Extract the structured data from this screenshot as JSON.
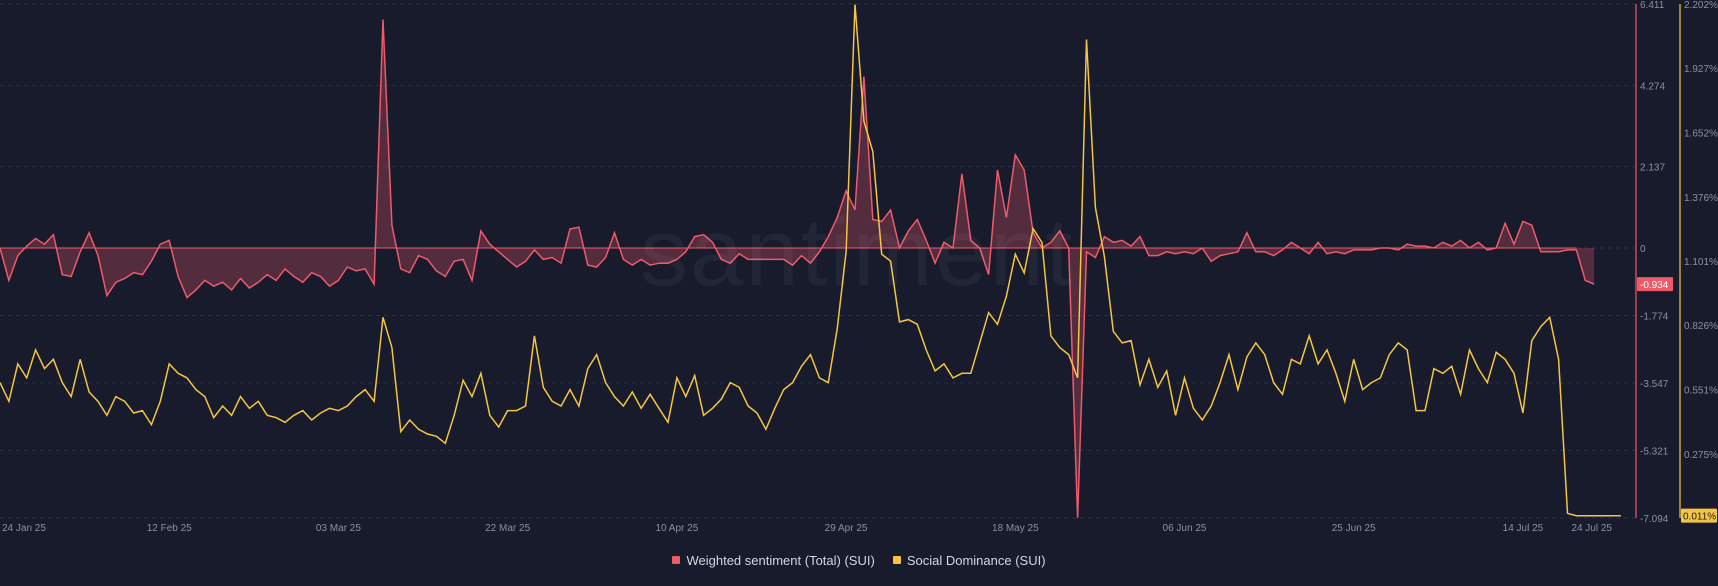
{
  "watermark": "santiment",
  "legend": [
    {
      "label": "Weighted sentiment (Total) (SUI)",
      "color": "#ef5a6a"
    },
    {
      "label": "Social Dominance (SUI)",
      "color": "#f5c542"
    }
  ],
  "chart_data": {
    "type": "line",
    "title": "",
    "x_ticks": [
      "24 Jan 25",
      "12 Feb 25",
      "03 Mar 25",
      "22 Mar 25",
      "10 Apr 25",
      "29 Apr 25",
      "18 May 25",
      "06 Jun 25",
      "25 Jun 25",
      "14 Jul 25",
      "24 Jul 25"
    ],
    "x_tick_days": [
      0,
      19,
      38,
      57,
      76,
      95,
      114,
      133,
      152,
      171,
      181
    ],
    "sentiment_axis": {
      "ticks": [
        "6.411",
        "4.274",
        "2.137",
        "0",
        "-1.774",
        "-3.547",
        "-5.321",
        "-7.094"
      ],
      "ylim": [
        -7.094,
        6.411
      ],
      "last_value_label": "-0.934"
    },
    "dominance_axis": {
      "ticks": [
        "2.202%",
        "1.927%",
        "1.652%",
        "1.376%",
        "1.101%",
        "0.826%",
        "0.551%",
        "0.275%"
      ],
      "ylim": [
        0.0,
        2.202
      ],
      "last_value_label": "0.011%"
    },
    "grid": true,
    "legend_position": "bottom-center",
    "series": [
      {
        "name": "Weighted sentiment (Total) (SUI)",
        "color": "#ef5a6a",
        "start_date": "24 Jan 25",
        "values": [
          0.0,
          -0.85,
          -0.2,
          0.05,
          0.25,
          0.1,
          0.35,
          -0.7,
          -0.75,
          -0.1,
          0.4,
          -0.2,
          -1.25,
          -0.9,
          -0.8,
          -0.65,
          -0.7,
          -0.35,
          0.1,
          0.2,
          -0.75,
          -1.3,
          -1.1,
          -0.85,
          -1.0,
          -0.9,
          -1.1,
          -0.8,
          -1.05,
          -0.9,
          -0.7,
          -0.85,
          -0.55,
          -0.75,
          -0.9,
          -0.65,
          -0.75,
          -1.0,
          -0.85,
          -0.5,
          -0.6,
          -0.55,
          -0.95,
          6.0,
          0.6,
          -0.55,
          -0.65,
          -0.2,
          -0.3,
          -0.6,
          -0.75,
          -0.35,
          -0.3,
          -0.85,
          0.45,
          0.1,
          -0.1,
          -0.3,
          -0.5,
          -0.35,
          -0.05,
          -0.3,
          -0.25,
          -0.4,
          0.5,
          0.55,
          -0.45,
          -0.5,
          -0.25,
          0.4,
          -0.3,
          -0.45,
          -0.3,
          -0.45,
          -0.4,
          -0.4,
          -0.3,
          -0.1,
          0.3,
          0.35,
          0.15,
          -0.3,
          -0.4,
          -0.15,
          -0.3,
          -0.3,
          -0.3,
          -0.3,
          -0.3,
          -0.45,
          -0.2,
          -0.4,
          -0.1,
          0.3,
          0.8,
          1.5,
          1.0,
          4.5,
          0.75,
          0.7,
          1.0,
          0.0,
          0.45,
          0.75,
          0.2,
          -0.4,
          0.15,
          0.0,
          1.95,
          0.2,
          0.0,
          -0.7,
          2.05,
          0.8,
          2.45,
          2.05,
          0.4,
          0.0,
          0.15,
          0.45,
          0.0,
          -7.09,
          -0.1,
          -0.25,
          0.3,
          0.15,
          0.2,
          0.05,
          0.3,
          -0.2,
          -0.2,
          -0.1,
          -0.15,
          -0.1,
          -0.15,
          0.0,
          -0.35,
          -0.2,
          -0.15,
          -0.1,
          0.4,
          -0.1,
          -0.1,
          -0.2,
          -0.05,
          0.15,
          0.0,
          -0.15,
          0.15,
          -0.15,
          -0.1,
          -0.15,
          -0.05,
          -0.05,
          -0.05,
          0.0,
          0.0,
          -0.05,
          0.1,
          0.05,
          0.05,
          0.0,
          0.15,
          0.05,
          0.2,
          0.0,
          0.15,
          -0.05,
          0.0,
          0.65,
          0.1,
          0.7,
          0.6,
          -0.1,
          -0.1,
          -0.1,
          -0.05,
          -0.05,
          -0.85,
          -0.95
        ]
      },
      {
        "name": "Social Dominance (SUI)",
        "color": "#f5c542",
        "start_date": "24 Jan 25",
        "values": [
          0.58,
          0.5,
          0.66,
          0.6,
          0.72,
          0.64,
          0.68,
          0.58,
          0.52,
          0.68,
          0.54,
          0.5,
          0.44,
          0.52,
          0.5,
          0.45,
          0.46,
          0.4,
          0.5,
          0.66,
          0.62,
          0.6,
          0.55,
          0.52,
          0.43,
          0.48,
          0.44,
          0.52,
          0.47,
          0.5,
          0.44,
          0.43,
          0.41,
          0.44,
          0.46,
          0.42,
          0.45,
          0.47,
          0.46,
          0.48,
          0.52,
          0.55,
          0.5,
          0.86,
          0.73,
          0.37,
          0.42,
          0.38,
          0.36,
          0.35,
          0.32,
          0.44,
          0.59,
          0.52,
          0.62,
          0.44,
          0.39,
          0.46,
          0.46,
          0.48,
          0.78,
          0.56,
          0.5,
          0.48,
          0.55,
          0.48,
          0.64,
          0.7,
          0.58,
          0.52,
          0.48,
          0.54,
          0.47,
          0.53,
          0.47,
          0.41,
          0.6,
          0.52,
          0.61,
          0.44,
          0.47,
          0.51,
          0.58,
          0.56,
          0.48,
          0.45,
          0.38,
          0.47,
          0.55,
          0.58,
          0.65,
          0.7,
          0.6,
          0.58,
          0.81,
          1.14,
          2.2,
          1.7,
          1.57,
          1.13,
          1.1,
          0.84,
          0.85,
          0.83,
          0.72,
          0.63,
          0.66,
          0.6,
          0.62,
          0.62,
          0.75,
          0.88,
          0.83,
          0.95,
          1.13,
          1.05,
          1.24,
          1.18,
          0.78,
          0.73,
          0.7,
          0.6,
          2.05,
          1.33,
          1.12,
          0.8,
          0.75,
          0.76,
          0.57,
          0.68,
          0.56,
          0.63,
          0.44,
          0.6,
          0.47,
          0.42,
          0.48,
          0.58,
          0.7,
          0.55,
          0.69,
          0.75,
          0.7,
          0.58,
          0.53,
          0.68,
          0.66,
          0.78,
          0.66,
          0.72,
          0.62,
          0.5,
          0.68,
          0.55,
          0.58,
          0.6,
          0.7,
          0.75,
          0.72,
          0.46,
          0.46,
          0.64,
          0.62,
          0.65,
          0.53,
          0.72,
          0.64,
          0.58,
          0.71,
          0.68,
          0.62,
          0.45,
          0.76,
          0.82,
          0.86,
          0.68,
          0.02,
          0.01,
          0.01,
          0.01,
          0.01,
          0.01,
          0.01
        ]
      }
    ]
  }
}
